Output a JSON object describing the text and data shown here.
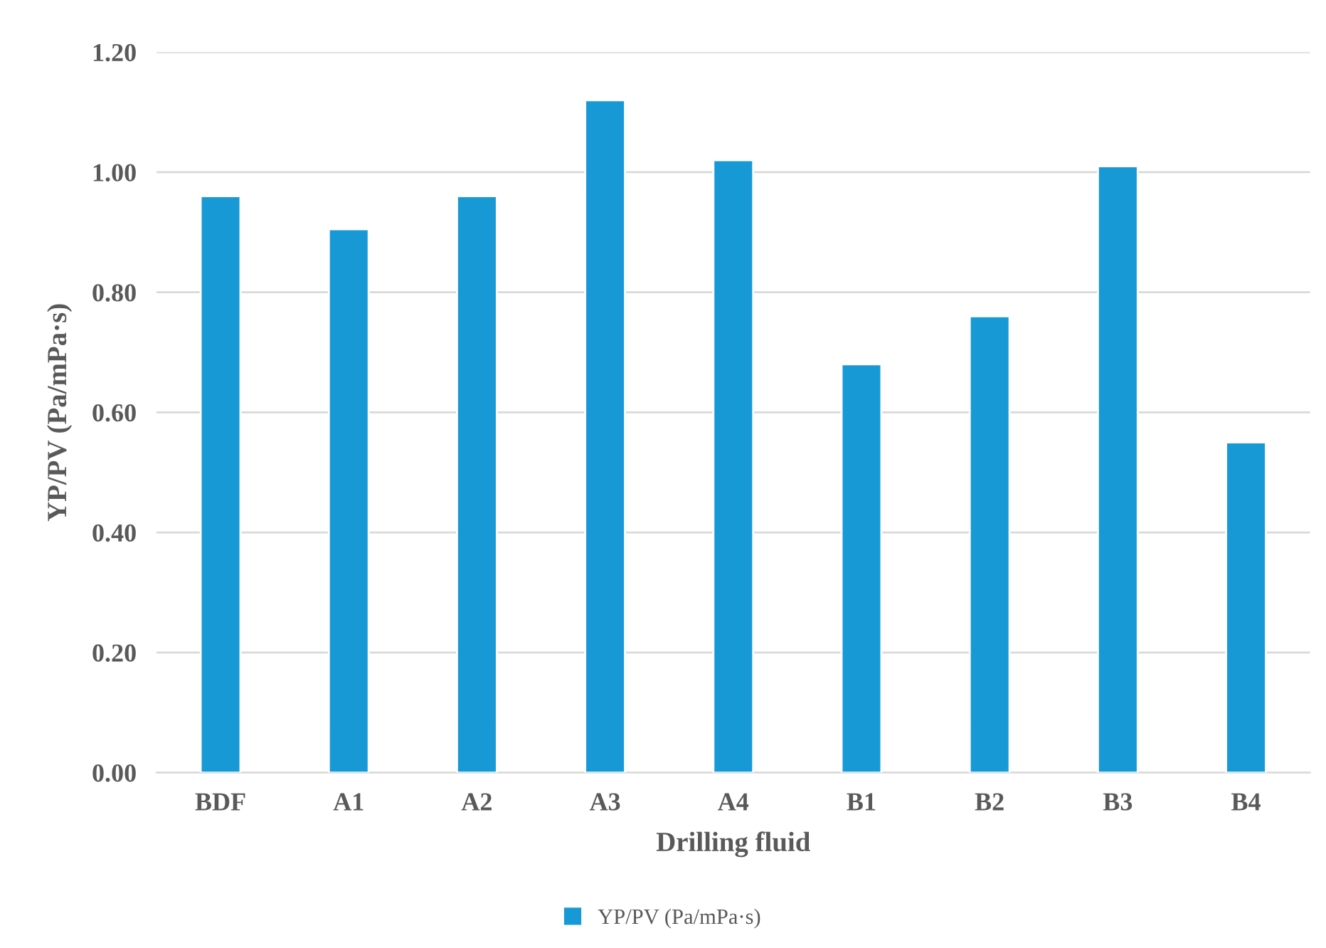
{
  "chart_data": {
    "type": "bar",
    "xlabel": "Drilling fluid",
    "ylabel": "YP/PV (Pa/mPa·s)",
    "categories": [
      "BDF",
      "A1",
      "A2",
      "A3",
      "A4",
      "B1",
      "B2",
      "B3",
      "B4"
    ],
    "series": [
      {
        "name": "YP/PV (Pa/mPa·s)",
        "color": "#1799d6",
        "values": [
          0.96,
          0.905,
          0.96,
          1.12,
          1.02,
          0.68,
          0.76,
          1.01,
          0.55
        ]
      }
    ],
    "ylim": [
      0,
      1.2
    ],
    "yticks": [
      {
        "value": 0,
        "label": "0.00"
      },
      {
        "value": 0.2,
        "label": "0.20"
      },
      {
        "value": 0.4,
        "label": "0.40"
      },
      {
        "value": 0.6,
        "label": "0.60"
      },
      {
        "value": 0.8,
        "label": "0.80"
      },
      {
        "value": 1.0,
        "label": "1.00"
      },
      {
        "value": 1.2,
        "label": "1.20"
      }
    ],
    "grid": "y",
    "legend": "bottom"
  }
}
